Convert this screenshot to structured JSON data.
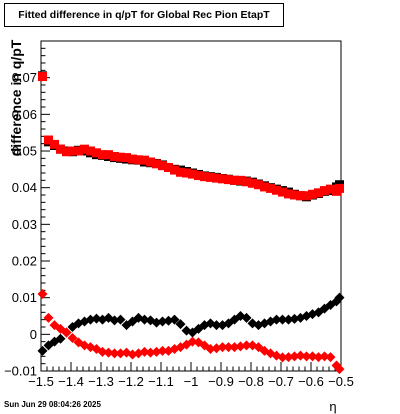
{
  "title": "Fitted difference in q/pT for Global Rec Pion EtapT",
  "timestamp": "Sun Jun 29 08:04:26 2025",
  "chart_data": {
    "type": "scatter",
    "title": "Fitted difference in q/pT for Global Rec Pion EtapT",
    "xlabel": "η",
    "ylabel": "difference in q/pT",
    "xlim": [
      -1.5,
      -0.5
    ],
    "ylim": [
      -0.01,
      0.08
    ],
    "x_ticks": [
      "−1.5",
      "−1.4",
      "−1.3",
      "−1.2",
      "−1.1",
      "−1",
      "−0.9",
      "−0.8",
      "−0.7",
      "−0.6",
      "−0.5"
    ],
    "y_ticks": [
      "−0.01",
      "0",
      "0.01",
      "0.02",
      "0.03",
      "0.04",
      "0.05",
      "0.06",
      "0.07"
    ],
    "grid": false,
    "x": [
      -1.495,
      -1.475,
      -1.455,
      -1.435,
      -1.415,
      -1.395,
      -1.375,
      -1.355,
      -1.335,
      -1.315,
      -1.295,
      -1.275,
      -1.255,
      -1.235,
      -1.215,
      -1.195,
      -1.175,
      -1.155,
      -1.135,
      -1.115,
      -1.095,
      -1.075,
      -1.055,
      -1.035,
      -1.015,
      -0.995,
      -0.975,
      -0.955,
      -0.935,
      -0.915,
      -0.895,
      -0.875,
      -0.855,
      -0.835,
      -0.815,
      -0.795,
      -0.775,
      -0.755,
      -0.735,
      -0.715,
      -0.695,
      -0.675,
      -0.655,
      -0.635,
      -0.615,
      -0.595,
      -0.575,
      -0.555,
      -0.535,
      -0.515,
      -0.505
    ],
    "series": [
      {
        "marker": "square",
        "color": "#000000",
        "values": [
          0.0705,
          0.0525,
          0.0515,
          0.0505,
          0.05,
          0.0498,
          0.0502,
          0.05,
          0.0495,
          0.049,
          0.0488,
          0.0485,
          0.0482,
          0.048,
          0.0478,
          0.0476,
          0.0475,
          0.047,
          0.0468,
          0.0466,
          0.0462,
          0.0455,
          0.045,
          0.0448,
          0.0444,
          0.044,
          0.0436,
          0.0432,
          0.043,
          0.0428,
          0.0425,
          0.0423,
          0.042,
          0.0418,
          0.0418,
          0.0415,
          0.041,
          0.0405,
          0.04,
          0.0396,
          0.0392,
          0.0388,
          0.0382,
          0.0378,
          0.0375,
          0.038,
          0.0384,
          0.039,
          0.0392,
          0.0402,
          0.0408
        ]
      },
      {
        "marker": "square",
        "color": "#ff0000",
        "values": [
          0.0703,
          0.053,
          0.0518,
          0.0505,
          0.0498,
          0.05,
          0.05,
          0.0505,
          0.05,
          0.0495,
          0.049,
          0.049,
          0.0485,
          0.0483,
          0.0482,
          0.0478,
          0.0476,
          0.0475,
          0.047,
          0.0465,
          0.046,
          0.0455,
          0.0448,
          0.0442,
          0.044,
          0.0437,
          0.0433,
          0.043,
          0.0428,
          0.0426,
          0.0424,
          0.0422,
          0.042,
          0.042,
          0.0416,
          0.0412,
          0.0408,
          0.0402,
          0.0398,
          0.0393,
          0.0388,
          0.0383,
          0.038,
          0.0378,
          0.0378,
          0.0382,
          0.0386,
          0.0392,
          0.0396,
          0.039,
          0.0398
        ]
      },
      {
        "marker": "diamond",
        "color": "#000000",
        "values": [
          -0.0045,
          -0.003,
          -0.002,
          -0.0012,
          0.0005,
          0.002,
          0.003,
          0.0035,
          0.004,
          0.0043,
          0.004,
          0.0045,
          0.0038,
          0.004,
          0.0025,
          0.0035,
          0.0045,
          0.004,
          0.0038,
          0.0032,
          0.0035,
          0.0037,
          0.004,
          0.0028,
          0.001,
          0.0005,
          0.0015,
          0.0025,
          0.003,
          0.0025,
          0.0025,
          0.003,
          0.004,
          0.005,
          0.0045,
          0.003,
          0.0025,
          0.003,
          0.0035,
          0.004,
          0.004,
          0.004,
          0.0042,
          0.0045,
          0.005,
          0.0055,
          0.006,
          0.007,
          0.008,
          0.009,
          0.01
        ]
      },
      {
        "marker": "diamond",
        "color": "#ff0000",
        "values": [
          0.011,
          0.0045,
          0.0025,
          0.0015,
          0.0005,
          -0.001,
          -0.0022,
          -0.003,
          -0.0035,
          -0.004,
          -0.0048,
          -0.005,
          -0.0052,
          -0.0052,
          -0.005,
          -0.0055,
          -0.0052,
          -0.0048,
          -0.005,
          -0.0048,
          -0.0045,
          -0.0045,
          -0.004,
          -0.0035,
          -0.0028,
          -0.002,
          -0.0022,
          -0.003,
          -0.004,
          -0.0038,
          -0.0035,
          -0.0035,
          -0.0035,
          -0.0033,
          -0.003,
          -0.003,
          -0.0035,
          -0.0045,
          -0.0052,
          -0.0058,
          -0.0063,
          -0.0062,
          -0.006,
          -0.0058,
          -0.006,
          -0.006,
          -0.0062,
          -0.006,
          -0.0062,
          -0.0085,
          -0.0095
        ]
      }
    ]
  }
}
